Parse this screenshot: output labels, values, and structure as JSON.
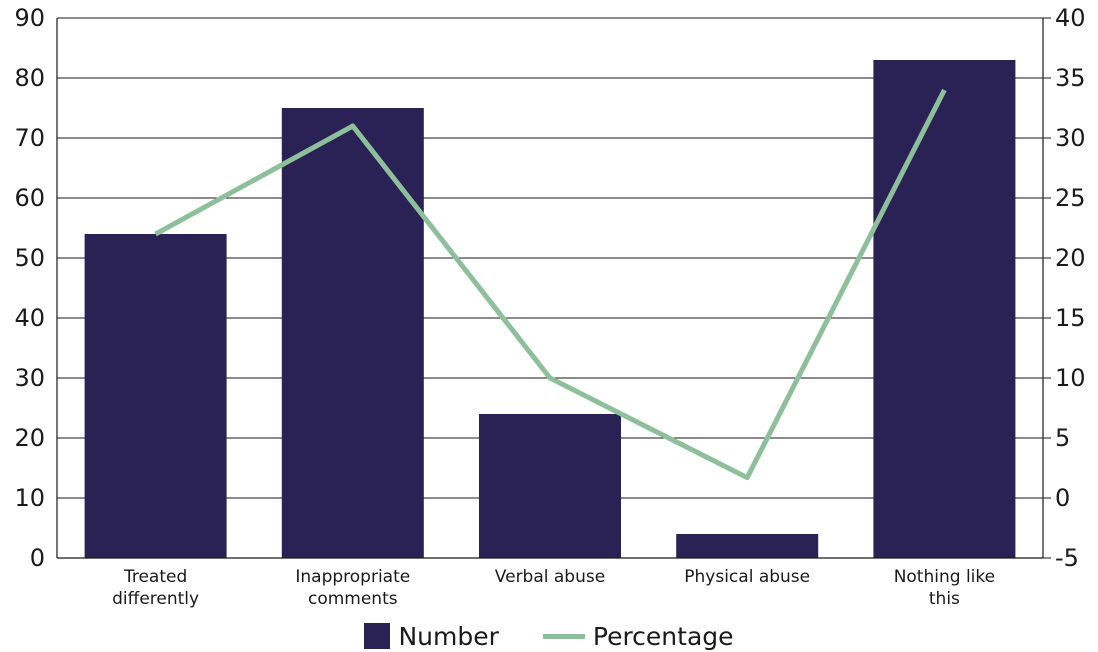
{
  "chart_data": {
    "type": "bar",
    "categories": [
      [
        "Treated",
        "differently"
      ],
      [
        "Inappropriate",
        "comments"
      ],
      [
        "Verbal abuse"
      ],
      [
        "Physical abuse"
      ],
      [
        "Nothing like",
        "this"
      ]
    ],
    "series": [
      {
        "name": "Number",
        "type": "bar",
        "axis": "left",
        "values": [
          54,
          75,
          24,
          4,
          83
        ]
      },
      {
        "name": "Percentage",
        "type": "line",
        "axis": "right",
        "values": [
          22,
          31,
          10,
          1.7,
          34
        ]
      }
    ],
    "y_left": {
      "ylim": [
        0,
        90
      ],
      "ticks": [
        "0",
        "10",
        "20",
        "30",
        "40",
        "50",
        "60",
        "70",
        "80",
        "90"
      ]
    },
    "y_right": {
      "ylim": [
        -5,
        40
      ],
      "ticks": [
        "-5",
        "0",
        "5",
        "10",
        "15",
        "20",
        "25",
        "30",
        "35",
        "40"
      ]
    },
    "grid": true,
    "legend_position": "bottom",
    "colors": {
      "bar": "#2a2154",
      "line": "#8dbf9a",
      "grid": "#1a1a1a"
    }
  },
  "legend": {
    "bar_label": "Number",
    "line_label": "Percentage"
  }
}
